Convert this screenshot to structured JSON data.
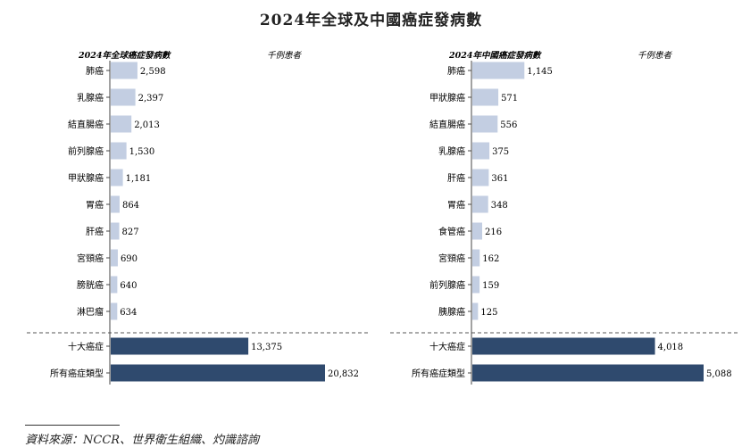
{
  "page": {
    "title": "2024年全球及中國癌症發病數",
    "source": "資料來源：NCCR、世界衛生組織、灼識諮詢"
  },
  "colors": {
    "light_bar": "#c3cee2",
    "dark_bar": "#2f4a6e",
    "axis": "#444444"
  },
  "chart_data": [
    {
      "type": "bar",
      "orientation": "horizontal",
      "title": "2024年全球癌症發病數",
      "unit": "千例患者",
      "categories": [
        "肺癌",
        "乳腺癌",
        "結直腸癌",
        "前列腺癌",
        "甲狀腺癌",
        "胃癌",
        "肝癌",
        "宮頸癌",
        "膀胱癌",
        "淋巴瘤"
      ],
      "values": [
        2598,
        2397,
        2013,
        1530,
        1181,
        864,
        827,
        690,
        640,
        634
      ],
      "value_labels": [
        "2,598",
        "2,397",
        "2,013",
        "1,530",
        "1,181",
        "864",
        "827",
        "690",
        "640",
        "634"
      ],
      "totals": {
        "categories": [
          "十大癌症",
          "所有癌症類型"
        ],
        "values": [
          13375,
          20832
        ],
        "value_labels": [
          "13,375",
          "20,832"
        ]
      }
    },
    {
      "type": "bar",
      "orientation": "horizontal",
      "title": "2024年中國癌症發病數",
      "unit": "千例患者",
      "categories": [
        "肺癌",
        "甲狀腺癌",
        "結直腸癌",
        "乳腺癌",
        "肝癌",
        "胃癌",
        "食管癌",
        "宮頸癌",
        "前列腺癌",
        "胰腺癌"
      ],
      "values": [
        1145,
        571,
        556,
        375,
        361,
        348,
        216,
        162,
        159,
        125
      ],
      "value_labels": [
        "1,145",
        "571",
        "556",
        "375",
        "361",
        "348",
        "216",
        "162",
        "159",
        "125"
      ],
      "totals": {
        "categories": [
          "十大癌症",
          "所有癌症類型"
        ],
        "values": [
          4018,
          5088
        ],
        "value_labels": [
          "4,018",
          "5,088"
        ]
      }
    }
  ]
}
